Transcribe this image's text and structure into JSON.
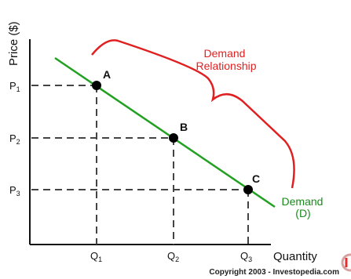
{
  "axes": {
    "y_title": "Price ($)",
    "x_title": "Quantity"
  },
  "price_levels": [
    {
      "main": "P",
      "sub": "1"
    },
    {
      "main": "P",
      "sub": "2"
    },
    {
      "main": "P",
      "sub": "3"
    }
  ],
  "quantity_levels": [
    {
      "main": "Q",
      "sub": "1"
    },
    {
      "main": "Q",
      "sub": "2"
    },
    {
      "main": "Q",
      "sub": "3"
    }
  ],
  "points": [
    {
      "label": "A"
    },
    {
      "label": "B"
    },
    {
      "label": "C"
    }
  ],
  "annotation": {
    "line1": "Demand",
    "line2": "Relationship"
  },
  "curve_label": {
    "line1": "Demand",
    "line2": "(D)"
  },
  "copyright": "Copyright 2003 - Investopedia.com",
  "colors": {
    "curve": "#22a022",
    "annotation": "#e02020",
    "axes": "#111111",
    "guides": "#444444",
    "points": "#000000"
  }
}
